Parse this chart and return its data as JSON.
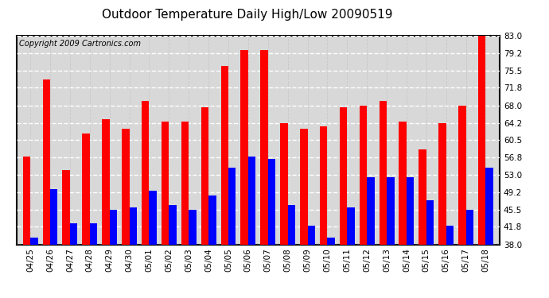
{
  "title": "Outdoor Temperature Daily High/Low 20090519",
  "copyright": "Copyright 2009 Cartronics.com",
  "categories": [
    "04/25",
    "04/26",
    "04/27",
    "04/28",
    "04/29",
    "04/30",
    "05/01",
    "05/02",
    "05/03",
    "05/04",
    "05/05",
    "05/06",
    "05/07",
    "05/08",
    "05/09",
    "05/10",
    "05/11",
    "05/12",
    "05/13",
    "05/14",
    "05/15",
    "05/16",
    "05/17",
    "05/18"
  ],
  "highs": [
    57.0,
    73.5,
    54.0,
    62.0,
    65.0,
    63.0,
    69.0,
    64.5,
    64.5,
    67.5,
    76.5,
    80.0,
    80.0,
    64.2,
    63.0,
    63.5,
    67.5,
    68.0,
    69.0,
    64.5,
    58.5,
    64.2,
    68.0,
    83.0
  ],
  "lows": [
    39.5,
    50.0,
    42.5,
    42.5,
    45.5,
    46.0,
    49.5,
    46.5,
    45.5,
    48.5,
    54.5,
    57.0,
    56.5,
    46.5,
    42.0,
    39.5,
    46.0,
    52.5,
    52.5,
    52.5,
    47.5,
    42.0,
    45.5,
    54.5
  ],
  "high_color": "#ff0000",
  "low_color": "#0000ff",
  "bg_color": "#ffffff",
  "plot_bg_color": "#ffffff",
  "grid_color": "#ffffff",
  "bar_width": 0.38,
  "ylim_min": 38.0,
  "ylim_max": 83.0,
  "yticks": [
    38.0,
    41.8,
    45.5,
    49.2,
    53.0,
    56.8,
    60.5,
    64.2,
    68.0,
    71.8,
    75.5,
    79.2,
    83.0
  ],
  "title_fontsize": 11,
  "tick_fontsize": 7.5,
  "copyright_fontsize": 7
}
